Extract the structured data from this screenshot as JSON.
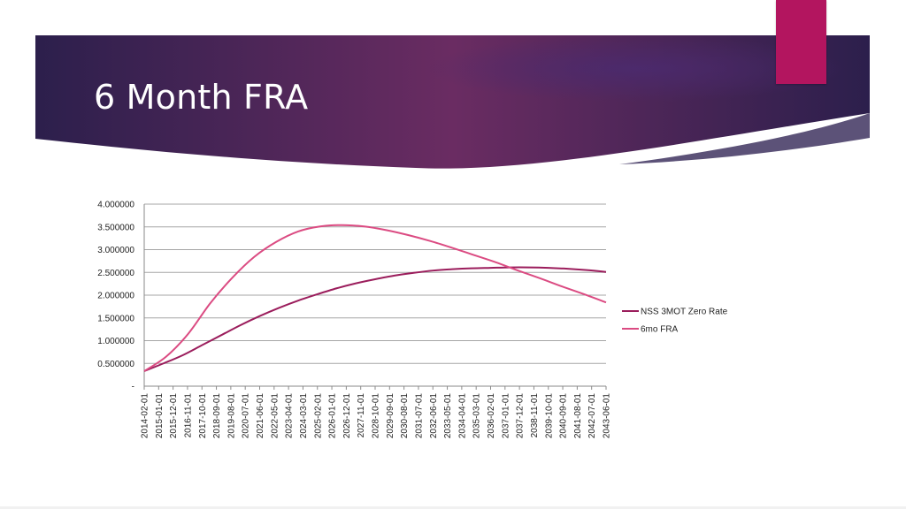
{
  "slide": {
    "title": "6 Month FRA",
    "colors": {
      "banner_dark": "#2c1f4c",
      "banner_mid": "#6a2c62",
      "accent_tab": "#b3155f",
      "swoosh": "#5c5278",
      "background": "#ffffff"
    }
  },
  "chart_data": {
    "type": "line",
    "title": "",
    "xlabel": "",
    "ylabel": "",
    "ylim": [
      0,
      4.0
    ],
    "y_ticks": [
      "-",
      "0.500000",
      "1.000000",
      "1.500000",
      "2.000000",
      "2.500000",
      "3.000000",
      "3.500000",
      "4.000000"
    ],
    "x_tick_labels": [
      "2014-02-01",
      "2015-01-01",
      "2015-12-01",
      "2016-11-01",
      "2017-10-01",
      "2018-09-01",
      "2019-08-01",
      "2020-07-01",
      "2021-06-01",
      "2022-05-01",
      "2023-04-01",
      "2024-03-01",
      "2025-02-01",
      "2026-01-01",
      "2026-12-01",
      "2027-11-01",
      "2028-10-01",
      "2029-09-01",
      "2030-08-01",
      "2031-07-01",
      "2032-06-01",
      "2033-05-01",
      "2034-04-01",
      "2035-03-01",
      "2036-02-01",
      "2037-01-01",
      "2037-12-01",
      "2038-11-01",
      "2039-10-01",
      "2040-09-01",
      "2041-08-01",
      "2042-07-01",
      "2043-06-01"
    ],
    "grid": true,
    "legend_position": "right",
    "series": [
      {
        "name": "NSS 3MOT Zero Rate",
        "color": "#9b1d5c",
        "values": [
          0.33,
          0.5,
          0.68,
          0.9,
          1.12,
          1.34,
          1.54,
          1.72,
          1.88,
          2.02,
          2.15,
          2.26,
          2.35,
          2.43,
          2.49,
          2.54,
          2.57,
          2.59,
          2.6,
          2.61,
          2.61,
          2.6,
          2.58,
          2.55,
          2.51
        ]
      },
      {
        "name": "6mo FRA",
        "color": "#db4b82",
        "values": [
          0.33,
          0.65,
          1.15,
          1.82,
          2.38,
          2.84,
          3.17,
          3.4,
          3.51,
          3.54,
          3.51,
          3.43,
          3.32,
          3.19,
          3.04,
          2.88,
          2.72,
          2.54,
          2.37,
          2.19,
          2.02,
          1.84
        ]
      }
    ]
  }
}
